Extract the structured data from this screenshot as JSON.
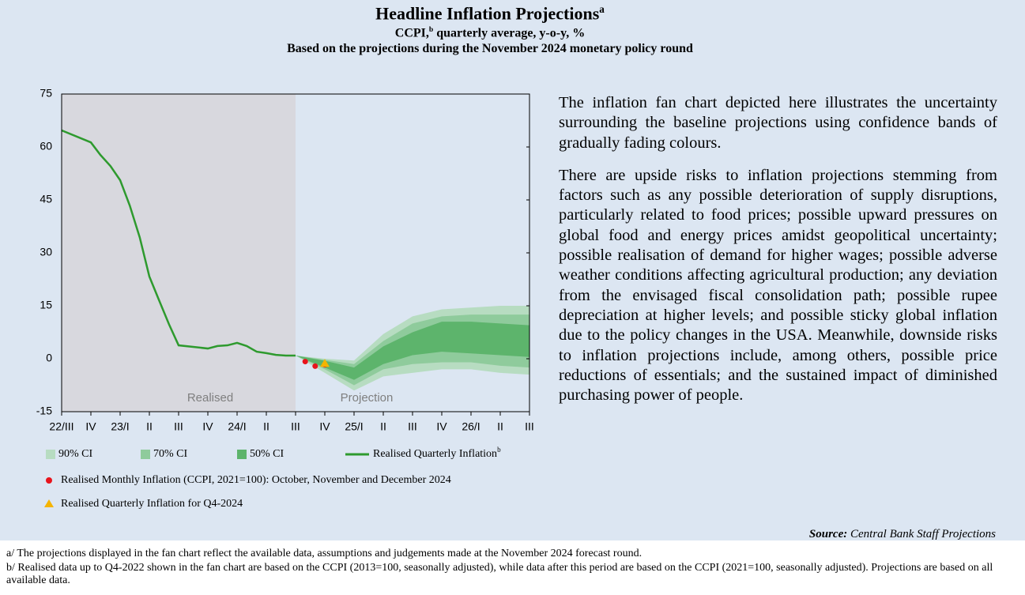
{
  "header": {
    "title": "Headline Inflation Projections",
    "title_note": "a",
    "subtitle_a": "CCPI,",
    "subtitle_note": "b",
    "subtitle_b": "quarterly average, y-o-y, %",
    "subtitle2": "Based on the projections during the November 2024 monetary policy round"
  },
  "chart_data": {
    "type": "fan",
    "xlim": [
      0,
      16
    ],
    "xticks": [
      {
        "value": 0,
        "label": "22/III"
      },
      {
        "value": 1,
        "label": "IV"
      },
      {
        "value": 2,
        "label": "23/I"
      },
      {
        "value": 3,
        "label": "II"
      },
      {
        "value": 4,
        "label": "III"
      },
      {
        "value": 5,
        "label": "IV"
      },
      {
        "value": 6,
        "label": "24/I"
      },
      {
        "value": 7,
        "label": "II"
      },
      {
        "value": 8,
        "label": "III"
      },
      {
        "value": 9,
        "label": "IV"
      },
      {
        "value": 10,
        "label": "25/I"
      },
      {
        "value": 11,
        "label": "II"
      },
      {
        "value": 12,
        "label": "III"
      },
      {
        "value": 13,
        "label": "IV"
      },
      {
        "value": 14,
        "label": "26/I"
      },
      {
        "value": 15,
        "label": "II"
      },
      {
        "value": 16,
        "label": "III"
      }
    ],
    "ylim": [
      -15,
      75
    ],
    "yticks": [
      -15,
      0,
      15,
      30,
      45,
      60,
      75
    ],
    "shaded_region": {
      "label": "Realised",
      "x": [
        0,
        8
      ],
      "color": "#d8d8de"
    },
    "projection_label": "Projection",
    "bands": [
      {
        "name": "90% CI",
        "color": "#b7dcc1",
        "x": [
          8,
          9,
          10,
          11,
          12,
          13,
          14,
          15,
          16
        ],
        "upper": [
          0.9,
          0,
          -0.5,
          7,
          12,
          14,
          14.5,
          15,
          15
        ],
        "lower": [
          0.9,
          -4,
          -9,
          -5,
          -4,
          -3,
          -3,
          -4,
          -4.5
        ]
      },
      {
        "name": "70% CI",
        "color": "#8fcb9c",
        "x": [
          8,
          9,
          10,
          11,
          12,
          13,
          14,
          15,
          16
        ],
        "upper": [
          0.9,
          -0.3,
          -1.5,
          5,
          10,
          12,
          12.5,
          12.5,
          12.5
        ],
        "lower": [
          0.9,
          -3,
          -7.5,
          -3,
          -1.5,
          -1,
          -1,
          -2,
          -2.5
        ]
      },
      {
        "name": "50% CI",
        "color": "#5db46c",
        "x": [
          8,
          9,
          10,
          11,
          12,
          13,
          14,
          15,
          16
        ],
        "upper": [
          0.9,
          -0.6,
          -2.5,
          3.5,
          7.5,
          10.5,
          10.5,
          10,
          9.5
        ],
        "lower": [
          0.9,
          -2.5,
          -6,
          -1.5,
          1,
          2,
          1.5,
          1,
          0.5
        ]
      }
    ],
    "series": [
      {
        "name": "Realised Quarterly Inflation",
        "name_note": "b",
        "color": "#2e9a2e",
        "x": [
          0,
          1,
          1.33,
          1.67,
          2,
          2.33,
          2.67,
          3,
          3.33,
          3.67,
          4,
          5,
          5.33,
          5.67,
          6,
          6.33,
          6.67,
          7,
          7.33,
          7.67,
          8
        ],
        "values": [
          64.7,
          61.3,
          57.7,
          54.6,
          50.6,
          43.4,
          34.4,
          23.3,
          16.6,
          9.8,
          3.8,
          2.9,
          3.6,
          3.8,
          4.5,
          3.6,
          2,
          1.6,
          1.1,
          0.9,
          0.9
        ]
      }
    ],
    "markers": [
      {
        "name": "Realised Monthly Inflation (CCPI, 2021=100): October, November and December 2024",
        "color": "#e8141c",
        "shape": "circle",
        "x": [
          8.33,
          8.67,
          9
        ],
        "values": [
          -0.8,
          -2.1,
          -1.7
        ]
      },
      {
        "name": "Realised Quarterly Inflation for Q4-2024",
        "color": "#f5b400",
        "shape": "triangle",
        "x": [
          9
        ],
        "values": [
          -1.4
        ]
      }
    ]
  },
  "text": {
    "paragraphs": [
      "The inflation fan chart depicted here illustrates the uncertainty surrounding the baseline projections using confidence bands of gradually fading colours.",
      "There are upside risks to inflation projections stemming from factors such as any possible deterioration of supply disruptions, particularly related to food prices; possible upward pressures on global food and energy prices amidst geopolitical uncertainty; possible realisation of demand for higher wages; possible adverse weather conditions affecting agricultural production; any deviation from the envisaged fiscal consolidation path; possible rupee depreciation at higher levels; and possible sticky global inflation due to the policy changes in the USA. Meanwhile, downside risks to inflation projections include, among others, possible price reductions of essentials; and the sustained impact of diminished purchasing power of people."
    ],
    "source_label": "Source:",
    "source": "Central Bank Staff Projections"
  },
  "footnotes": [
    "a/ The projections displayed in the fan chart reflect the available data, assumptions and judgements made at the November 2024 forecast round.",
    "b/ Realised data up to Q4-2022 shown in the fan chart are based on the CCPI (2013=100, seasonally adjusted), while data after this period are based on the CCPI (2021=100, seasonally adjusted). Projections are based on all available data."
  ]
}
